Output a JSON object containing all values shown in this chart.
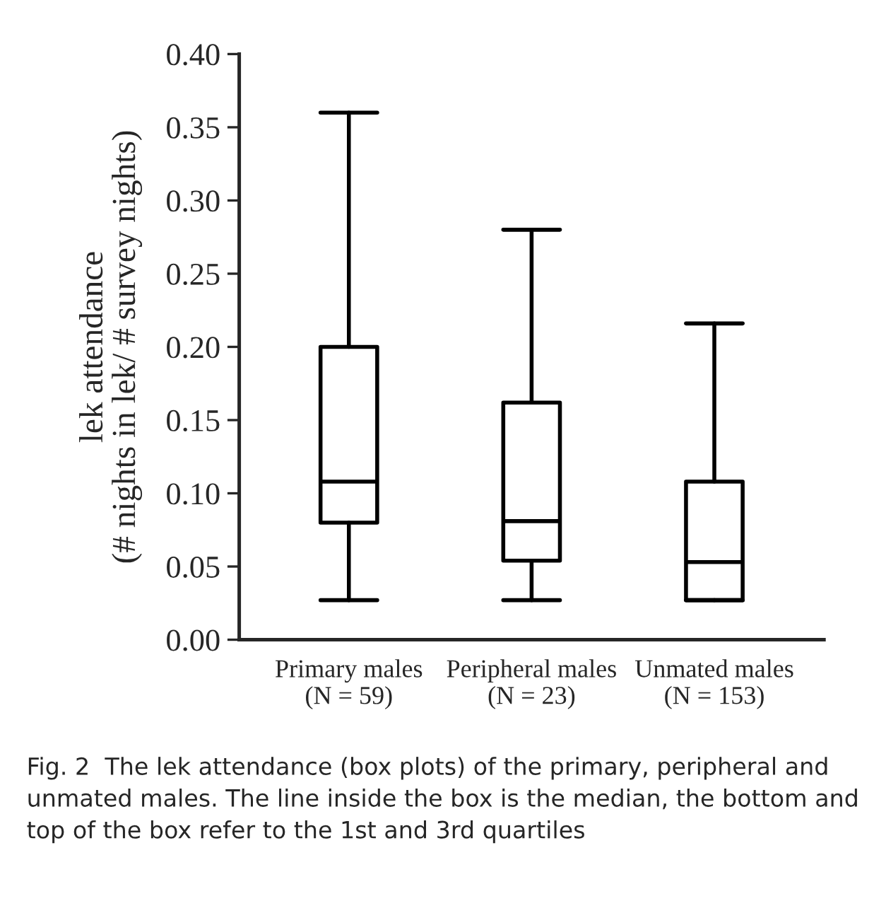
{
  "chart_data": {
    "type": "box",
    "ylabel": "lek attendance\n(# nights in lek/ # survey nights)",
    "categories": [
      "Primary males\n(N = 59)",
      "Peripheral males\n(N = 23)",
      "Unmated males\n(N = 153)"
    ],
    "boxes": [
      {
        "low": 0.027,
        "q1": 0.08,
        "median": 0.108,
        "q3": 0.2,
        "high": 0.36
      },
      {
        "low": 0.027,
        "q1": 0.054,
        "median": 0.081,
        "q3": 0.162,
        "high": 0.28
      },
      {
        "low": 0.027,
        "q1": 0.027,
        "median": 0.053,
        "q3": 0.108,
        "high": 0.216
      }
    ],
    "ylim": [
      0,
      0.4
    ],
    "yticks": [
      {
        "value": 0,
        "label": "0.00"
      },
      {
        "value": 0.05,
        "label": "0.05"
      },
      {
        "value": 0.1,
        "label": "0.10"
      },
      {
        "value": 0.15,
        "label": "0.15"
      },
      {
        "value": 0.2,
        "label": "0.20"
      },
      {
        "value": 0.25,
        "label": "0.25"
      },
      {
        "value": 0.3,
        "label": "0.30"
      },
      {
        "value": 0.35,
        "label": "0.35"
      },
      {
        "value": 0.4,
        "label": "0.40"
      }
    ],
    "grid": false,
    "annotations": [
      "Fig. 2  The lek attendance (box plots) of the primary, peripheral and unmated males. The line inside the box is the median, the bottom and top of the box refer to the 1st and 3rd quartiles"
    ]
  }
}
